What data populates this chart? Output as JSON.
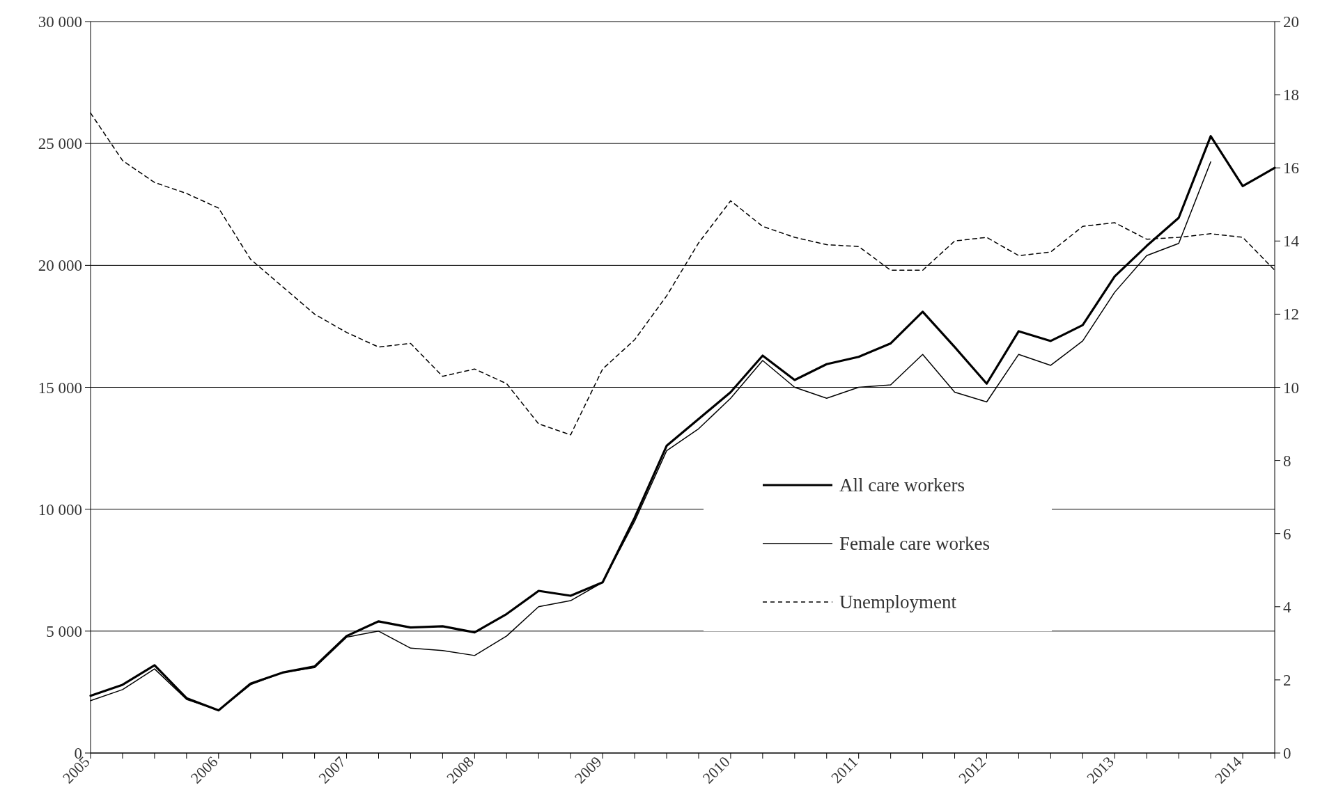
{
  "chart_data": {
    "type": "line",
    "x": [
      2005,
      2005.25,
      2005.5,
      2005.75,
      2006,
      2006.25,
      2006.5,
      2006.75,
      2007,
      2007.25,
      2007.5,
      2007.75,
      2008,
      2008.25,
      2008.5,
      2008.75,
      2009,
      2009.25,
      2009.5,
      2009.75,
      2010,
      2010.25,
      2010.5,
      2010.75,
      2011,
      2011.25,
      2011.5,
      2011.75,
      2012,
      2012.25,
      2012.5,
      2012.75,
      2013,
      2013.25,
      2013.5,
      2013.75,
      2014,
      2014.25
    ],
    "series": [
      {
        "name": "All care workers",
        "color": "#000000",
        "line_style": "solid",
        "values": [
          2350,
          2800,
          3600,
          2250,
          1750,
          2850,
          3300,
          3550,
          4800,
          5400,
          5150,
          5200,
          4950,
          5700,
          6650,
          6450,
          7000,
          9650,
          12600,
          13700,
          14800,
          16300,
          15300,
          15950,
          16250,
          16800,
          18100,
          16650,
          15150,
          17300,
          16900,
          17550,
          19550,
          20800,
          21950,
          25300,
          23250,
          24000
        ]
      },
      {
        "name": "Female care workes",
        "color": "#000000",
        "line_style": "solid",
        "values": [
          2150,
          2600,
          3450,
          2200,
          1750,
          2800,
          3300,
          3500,
          4750,
          5000,
          4300,
          4200,
          4000,
          4800,
          6000,
          6250,
          7000,
          9500,
          12400,
          13300,
          14550,
          16100,
          15000,
          14550,
          15000,
          15100,
          16350,
          14800,
          14400,
          16350,
          15900,
          16900,
          18900,
          20400,
          20900,
          24250,
          null,
          null
        ]
      },
      {
        "name": "Unemployment",
        "color": "#000000",
        "line_style": "dashed",
        "axis": "y2",
        "values": [
          17.5,
          16.2,
          15.6,
          15.3,
          14.9,
          13.5,
          12.75,
          12.0,
          11.5,
          11.1,
          11.2,
          10.3,
          10.5,
          10.1,
          9.0,
          8.7,
          10.5,
          11.3,
          12.5,
          13.95,
          15.1,
          14.4,
          14.1,
          13.9,
          13.85,
          13.2,
          13.2,
          14.0,
          14.1,
          13.6,
          13.7,
          14.4,
          14.5,
          14.05,
          14.1,
          14.2,
          14.1,
          13.2
        ]
      }
    ],
    "xlim": [
      2005,
      2014.25
    ],
    "xticks": [
      {
        "value": 2005,
        "label": "2005"
      },
      {
        "value": 2005.25,
        "label": null
      },
      {
        "value": 2005.5,
        "label": null
      },
      {
        "value": 2005.75,
        "label": null
      },
      {
        "value": 2006,
        "label": "2006"
      },
      {
        "value": 2006.25,
        "label": null
      },
      {
        "value": 2006.5,
        "label": null
      },
      {
        "value": 2006.75,
        "label": null
      },
      {
        "value": 2007,
        "label": "2007"
      },
      {
        "value": 2007.25,
        "label": null
      },
      {
        "value": 2007.5,
        "label": null
      },
      {
        "value": 2007.75,
        "label": null
      },
      {
        "value": 2008,
        "label": "2008"
      },
      {
        "value": 2008.25,
        "label": null
      },
      {
        "value": 2008.5,
        "label": null
      },
      {
        "value": 2008.75,
        "label": null
      },
      {
        "value": 2009,
        "label": "2009"
      },
      {
        "value": 2009.25,
        "label": null
      },
      {
        "value": 2009.5,
        "label": null
      },
      {
        "value": 2009.75,
        "label": null
      },
      {
        "value": 2010,
        "label": "2010"
      },
      {
        "value": 2010.25,
        "label": null
      },
      {
        "value": 2010.5,
        "label": null
      },
      {
        "value": 2010.75,
        "label": null
      },
      {
        "value": 2011,
        "label": "2011"
      },
      {
        "value": 2011.25,
        "label": null
      },
      {
        "value": 2011.5,
        "label": null
      },
      {
        "value": 2011.75,
        "label": null
      },
      {
        "value": 2012,
        "label": "2012"
      },
      {
        "value": 2012.25,
        "label": null
      },
      {
        "value": 2012.5,
        "label": null
      },
      {
        "value": 2012.75,
        "label": null
      },
      {
        "value": 2013,
        "label": "2013"
      },
      {
        "value": 2013.25,
        "label": null
      },
      {
        "value": 2013.5,
        "label": null
      },
      {
        "value": 2013.75,
        "label": null
      },
      {
        "value": 2014,
        "label": "2014"
      },
      {
        "value": 2014.25,
        "label": null
      }
    ],
    "ylim": [
      0,
      30000
    ],
    "yticks": [
      0,
      {
        "value": 5000,
        "label": "5 000"
      },
      {
        "value": 10000,
        "label": "10 000"
      },
      {
        "value": 15000,
        "label": "15 000"
      },
      {
        "value": 20000,
        "label": "20 000"
      },
      {
        "value": 25000,
        "label": "25 000"
      },
      {
        "value": 30000,
        "label": "30 000"
      }
    ],
    "y2lim": [
      0,
      20
    ],
    "y2ticks": [
      0,
      2,
      4,
      6,
      8,
      10,
      12,
      14,
      16,
      18,
      20
    ],
    "grid": "y",
    "legend": "bottom right",
    "marker": "none"
  }
}
